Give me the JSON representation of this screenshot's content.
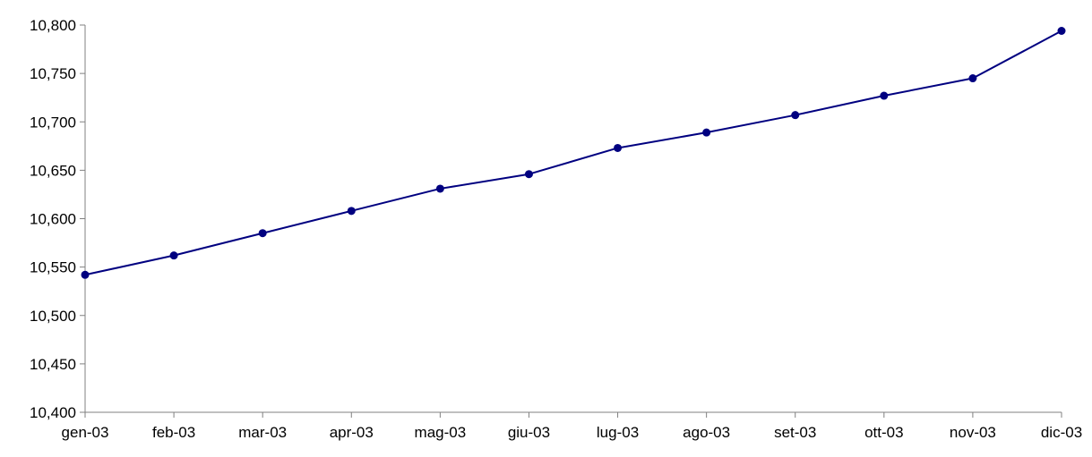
{
  "chart_data": {
    "type": "line",
    "title": "",
    "xlabel": "",
    "ylabel": "",
    "categories": [
      "gen-03",
      "feb-03",
      "mar-03",
      "apr-03",
      "mag-03",
      "giu-03",
      "lug-03",
      "ago-03",
      "set-03",
      "ott-03",
      "nov-03",
      "dic-03"
    ],
    "series": [
      {
        "values": [
          10542,
          10562,
          10585,
          10608,
          10631,
          10646,
          10673,
          10689,
          10707,
          10727,
          10745,
          10794
        ],
        "color": "#000080",
        "marker": "circle"
      }
    ],
    "ylim": [
      10400,
      10800
    ],
    "y_ticks": [
      {
        "value": 10400,
        "label": "10,400"
      },
      {
        "value": 10450,
        "label": "10,450"
      },
      {
        "value": 10500,
        "label": "10,500"
      },
      {
        "value": 10550,
        "label": "10,550"
      },
      {
        "value": 10600,
        "label": "10,600"
      },
      {
        "value": 10650,
        "label": "10,650"
      },
      {
        "value": 10700,
        "label": "10,700"
      },
      {
        "value": 10750,
        "label": "10,750"
      },
      {
        "value": 10800,
        "label": "10,800"
      }
    ],
    "grid": false,
    "legend": "none",
    "axis_color": "#808080"
  }
}
